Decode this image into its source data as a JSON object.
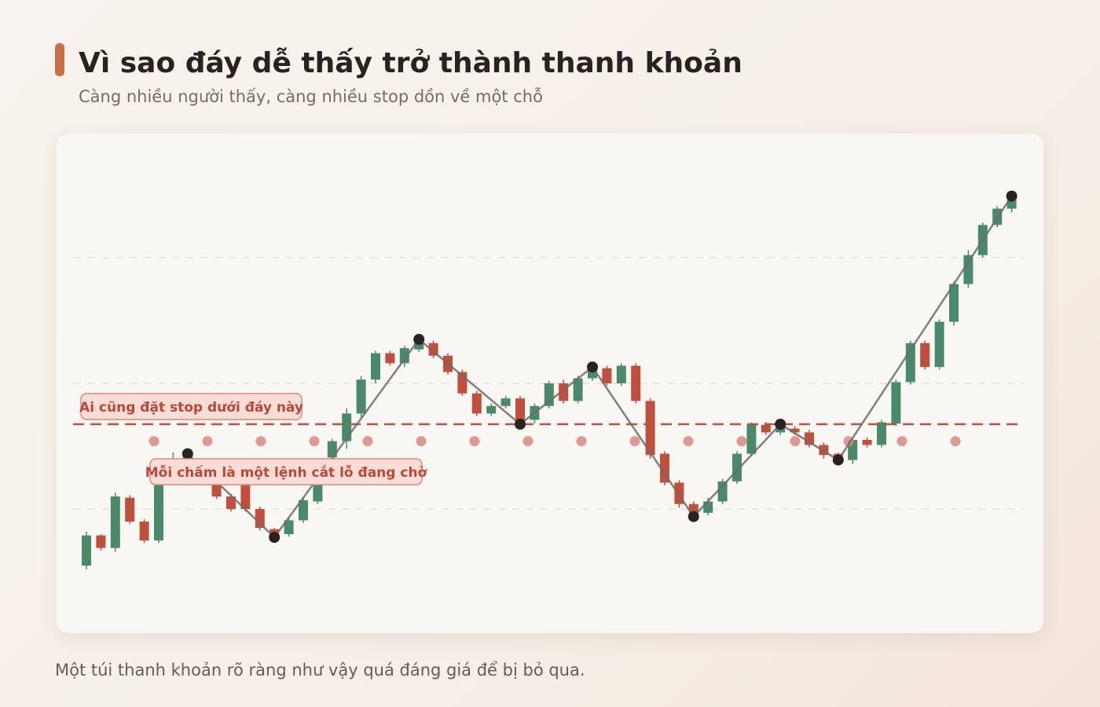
{
  "chart_data": {
    "type": "candlestick",
    "title": "Vì sao đáy dễ thấy trở thành thanh khoản",
    "subtitle": "Càng nhiều người thấy, càng nhiều stop dồn về một chỗ",
    "footer": "Một túi thanh khoản rõ ràng như vậy quá đáng giá để bị bỏ qua.",
    "annotations": [
      "Ai cũng đặt stop dưới đáy này",
      "Mỗi chấm là một lệnh cắt lỗ đang chờ"
    ],
    "ylim": [
      0,
      40
    ],
    "grid_lines": [
      10,
      20,
      30
    ],
    "grid": true,
    "up_color": "#4a8a6a",
    "down_color": "#c0503e",
    "support_level": 16.75,
    "stop_level": 15.4,
    "candles": [
      [
        5.5,
        8.2,
        5.2,
        7.9
      ],
      [
        7.9,
        8.0,
        6.7,
        6.9
      ],
      [
        6.9,
        11.3,
        6.6,
        11.0
      ],
      [
        10.9,
        11.1,
        8.8,
        9.0
      ],
      [
        9.0,
        9.2,
        7.3,
        7.5
      ],
      [
        7.5,
        12.7,
        7.3,
        12.4
      ],
      [
        12.4,
        14.5,
        12.0,
        14.0
      ],
      [
        14.2,
        14.4,
        13.0,
        13.2
      ],
      [
        13.4,
        14.0,
        11.9,
        12.2
      ],
      [
        12.2,
        12.4,
        10.8,
        11.0
      ],
      [
        11.0,
        11.2,
        9.8,
        10.0
      ],
      [
        11.9,
        12.2,
        9.8,
        10.0
      ],
      [
        10.0,
        10.2,
        8.3,
        8.5
      ],
      [
        8.4,
        8.5,
        7.6,
        7.9
      ],
      [
        8.0,
        9.3,
        7.8,
        9.1
      ],
      [
        9.1,
        10.9,
        8.9,
        10.7
      ],
      [
        10.6,
        12.6,
        10.4,
        12.4
      ],
      [
        14.1,
        15.6,
        13.8,
        15.4
      ],
      [
        15.4,
        18.0,
        14.8,
        17.6
      ],
      [
        17.6,
        20.6,
        17.3,
        20.3
      ],
      [
        20.3,
        22.6,
        20.0,
        22.4
      ],
      [
        22.4,
        22.6,
        21.4,
        21.6
      ],
      [
        21.6,
        23.0,
        21.3,
        22.8
      ],
      [
        22.7,
        23.7,
        22.5,
        23.5
      ],
      [
        23.2,
        23.4,
        22.0,
        22.2
      ],
      [
        22.2,
        22.4,
        20.7,
        20.9
      ],
      [
        20.9,
        21.1,
        19.0,
        19.2
      ],
      [
        19.2,
        19.4,
        17.4,
        17.6
      ],
      [
        17.6,
        18.4,
        17.4,
        18.2
      ],
      [
        18.2,
        19.0,
        18.0,
        18.8
      ],
      [
        18.8,
        19.0,
        16.5,
        16.7
      ],
      [
        17.1,
        18.4,
        16.8,
        18.2
      ],
      [
        18.2,
        20.2,
        18.0,
        20.0
      ],
      [
        20.0,
        20.3,
        18.4,
        18.6
      ],
      [
        18.6,
        20.6,
        18.4,
        20.4
      ],
      [
        20.4,
        21.5,
        20.2,
        21.3
      ],
      [
        21.2,
        21.4,
        19.8,
        20.0
      ],
      [
        20.0,
        21.6,
        19.8,
        21.4
      ],
      [
        21.4,
        21.6,
        18.4,
        18.6
      ],
      [
        18.6,
        18.8,
        14.0,
        14.3
      ],
      [
        14.4,
        14.6,
        11.9,
        12.1
      ],
      [
        12.1,
        12.3,
        10.1,
        10.4
      ],
      [
        10.4,
        10.6,
        9.2,
        9.4
      ],
      [
        9.7,
        10.9,
        9.5,
        10.6
      ],
      [
        10.6,
        12.4,
        10.4,
        12.2
      ],
      [
        12.2,
        14.6,
        12.0,
        14.4
      ],
      [
        14.4,
        16.9,
        14.2,
        16.7
      ],
      [
        16.7,
        16.9,
        15.9,
        16.1
      ],
      [
        16.1,
        16.9,
        15.9,
        16.7
      ],
      [
        16.4,
        16.6,
        15.9,
        16.1
      ],
      [
        16.1,
        16.3,
        14.9,
        15.1
      ],
      [
        15.1,
        15.3,
        14.0,
        14.3
      ],
      [
        14.4,
        14.5,
        13.7,
        13.9
      ],
      [
        13.9,
        15.7,
        13.6,
        15.5
      ],
      [
        15.5,
        15.7,
        14.9,
        15.1
      ],
      [
        15.1,
        17.1,
        14.9,
        16.9
      ],
      [
        16.8,
        20.3,
        16.6,
        20.1
      ],
      [
        20.1,
        23.4,
        19.9,
        23.2
      ],
      [
        23.2,
        23.4,
        21.1,
        21.3
      ],
      [
        21.3,
        25.1,
        21.1,
        24.9
      ],
      [
        24.9,
        28.1,
        24.6,
        27.9
      ],
      [
        27.9,
        30.6,
        27.6,
        30.2
      ],
      [
        30.2,
        32.8,
        30.0,
        32.6
      ],
      [
        32.6,
        34.1,
        32.4,
        33.9
      ],
      [
        33.9,
        35.0,
        33.6,
        34.6
      ]
    ],
    "swing_points": {
      "x": [
        7,
        13,
        23,
        30,
        35,
        42,
        48,
        52,
        64
      ],
      "values": [
        14.4,
        7.75,
        23.5,
        16.75,
        21.3,
        9.4,
        16.75,
        13.9,
        34.9
      ]
    }
  }
}
